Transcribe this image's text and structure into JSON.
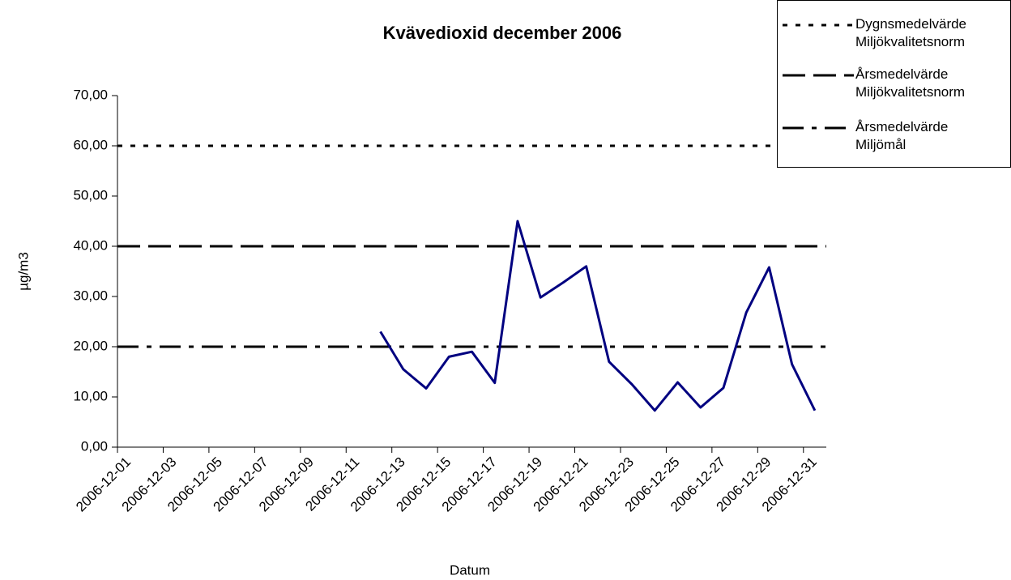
{
  "chart_data": {
    "type": "line",
    "title": "Kvävedioxid december 2006",
    "x_label": "Datum",
    "y_label": "µg/m3",
    "categories": [
      "2006-12-01",
      null,
      "2006-12-03",
      null,
      "2006-12-05",
      null,
      "2006-12-07",
      null,
      "2006-12-09",
      null,
      "2006-12-11",
      null,
      "2006-12-13",
      null,
      "2006-12-15",
      null,
      "2006-12-17",
      null,
      "2006-12-19",
      null,
      "2006-12-21",
      null,
      "2006-12-23",
      null,
      "2006-12-25",
      null,
      "2006-12-27",
      null,
      "2006-12-29",
      null,
      "2006-12-31"
    ],
    "values": [
      null,
      null,
      null,
      null,
      null,
      null,
      null,
      null,
      null,
      null,
      null,
      23,
      15.5,
      11.7,
      18,
      19,
      12.8,
      45,
      29.8,
      32.8,
      36,
      17,
      12.5,
      7.3,
      12.9,
      7.9,
      11.8,
      26.8,
      35.8,
      16.5,
      7.3
    ],
    "color": "#000080",
    "reference_lines": [
      {
        "name": "Dygnsmedelvärde Miljökvalitetsnorm",
        "value": 60,
        "dash": "dotted"
      },
      {
        "name": "Årsmedelvärde Miljökvalitetsnorm",
        "value": 40,
        "dash": "dashed"
      },
      {
        "name": "Årsmedelvärde Miljömål",
        "value": 20,
        "dash": "dashdot"
      }
    ],
    "ylim": [
      0,
      70
    ],
    "yticks": [
      {
        "value": 0,
        "label": "0,00"
      },
      {
        "value": 10,
        "label": "10,00"
      },
      {
        "value": 20,
        "label": "20,00"
      },
      {
        "value": 30,
        "label": "30,00"
      },
      {
        "value": 40,
        "label": "40,00"
      },
      {
        "value": 50,
        "label": "50,00"
      },
      {
        "value": 60,
        "label": "60,00"
      },
      {
        "value": 70,
        "label": "70,00"
      }
    ],
    "legend": "upper right"
  }
}
